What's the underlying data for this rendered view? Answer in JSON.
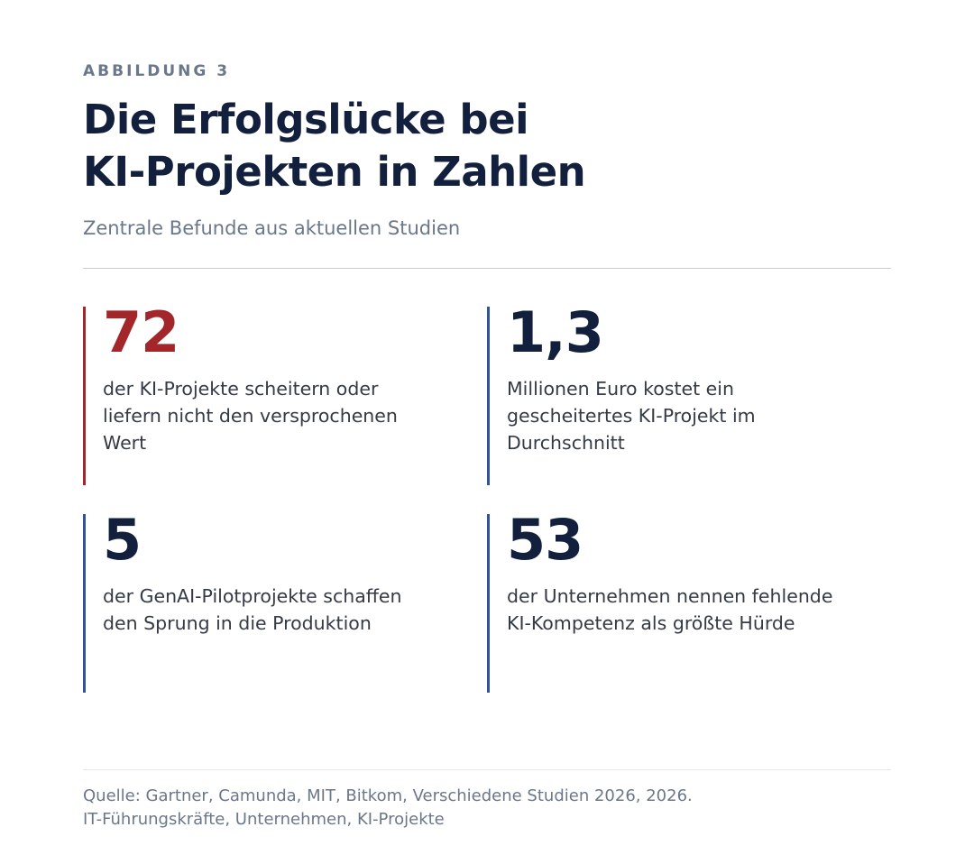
{
  "header": {
    "kicker": "ABBILDUNG 3",
    "title_lines": [
      "Die Erfolgslücke bei",
      "KI-Projekten in Zahlen"
    ],
    "subtitle": "Zentrale Befunde aus aktuellen Studien"
  },
  "stats": [
    {
      "value": "72",
      "description_lines": [
        "der KI-Projekte scheitern oder",
        "liefern nicht den versprochenen",
        "Wert"
      ],
      "accent_color": "#a3272a"
    },
    {
      "value": "1,3",
      "description_lines": [
        "Millionen Euro kostet ein",
        "gescheitertes KI-Projekt im",
        "Durchschnitt"
      ],
      "accent_color": "#2f5597"
    },
    {
      "value": "5",
      "description_lines": [
        "der GenAI-Pilotprojekte schaffen",
        "den Sprung in die Produktion"
      ],
      "accent_color": "#2f5597"
    },
    {
      "value": "53",
      "description_lines": [
        "der Unternehmen nennen fehlende",
        "KI-Kompetenz als größte Hürde"
      ],
      "accent_color": "#2f5597"
    }
  ],
  "source": {
    "lines": [
      "Quelle: Gartner, Camunda, MIT, Bitkom, Verschiedene Studien 2026, 2026.",
      "IT-Führungskräfte, Unternehmen, KI-Projekte"
    ]
  },
  "colors": {
    "text_dark": "#12203d",
    "text_muted": "#6b778a",
    "accent_red": "#a3272a",
    "accent_blue": "#2f5597"
  }
}
